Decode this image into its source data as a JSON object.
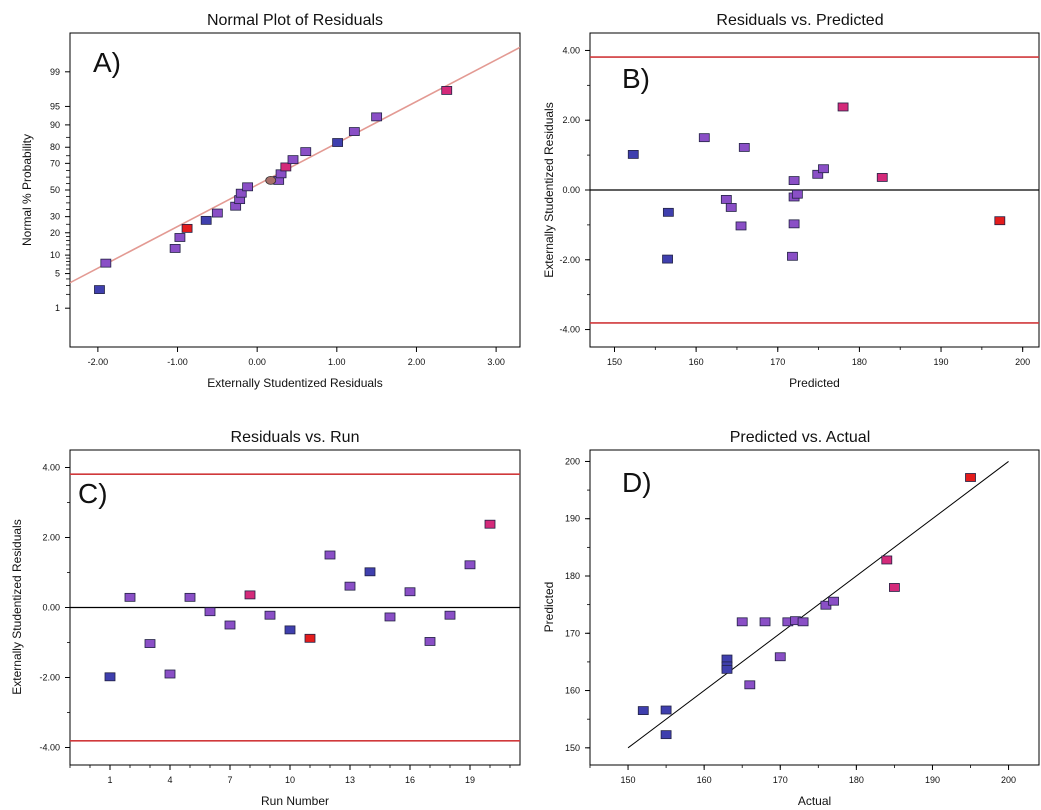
{
  "colors": {
    "reference_red": "#d0393b",
    "normal_line": "#e39a93",
    "zero_line": "#000000",
    "fit_line": "#000000",
    "point_low": "#3f3fae",
    "point_mid": "#8a4fc6",
    "point_high": "#d42a7a",
    "point_max": "#e41c1c",
    "point_stroke": "#222244"
  },
  "chart_data": [
    {
      "panel": "A)",
      "type": "scatter",
      "title": "Normal Plot of Residuals",
      "xlabel": "Externally Studentized Residuals",
      "ylabel": "Normal % Probability",
      "y_scale": "normal-probability",
      "xlim": [
        -2.35,
        3.3
      ],
      "ylim": [
        0.1,
        99.9
      ],
      "xticks": [
        "-2.00",
        "-1.00",
        "0.00",
        "1.00",
        "2.00",
        "3.00"
      ],
      "xtick_values": [
        -2,
        -1,
        0,
        1,
        2,
        3
      ],
      "yticks": [
        "1",
        "5",
        "10",
        "20",
        "30",
        "50",
        "70",
        "80",
        "90",
        "95",
        "99"
      ],
      "ytick_values": [
        1,
        5,
        10,
        20,
        30,
        50,
        70,
        80,
        90,
        95,
        99
      ],
      "reference_line": {
        "x": [
          -2.35,
          3.3
        ],
        "y": [
          3.4,
          99.75
        ]
      },
      "points": [
        {
          "x": -1.98,
          "y": 2.5,
          "c": "low"
        },
        {
          "x": -1.9,
          "y": 7.5,
          "c": "mid"
        },
        {
          "x": -1.03,
          "y": 12.5,
          "c": "mid"
        },
        {
          "x": -0.97,
          "y": 17.5,
          "c": "mid"
        },
        {
          "x": -0.88,
          "y": 22.5,
          "c": "max"
        },
        {
          "x": -0.64,
          "y": 27.5,
          "c": "low"
        },
        {
          "x": -0.5,
          "y": 32.5,
          "c": "mid"
        },
        {
          "x": -0.27,
          "y": 37.5,
          "c": "mid"
        },
        {
          "x": -0.22,
          "y": 42.5,
          "c": "mid"
        },
        {
          "x": -0.2,
          "y": 47.5,
          "c": "mid"
        },
        {
          "x": -0.12,
          "y": 52.5,
          "c": "mid"
        },
        {
          "x": 0.27,
          "y": 57.5,
          "c": "mid"
        },
        {
          "x": 0.3,
          "y": 62.5,
          "c": "mid"
        },
        {
          "x": 0.36,
          "y": 67.5,
          "c": "high"
        },
        {
          "x": 0.45,
          "y": 72.5,
          "c": "mid"
        },
        {
          "x": 0.61,
          "y": 77.5,
          "c": "mid"
        },
        {
          "x": 1.01,
          "y": 82.5,
          "c": "low"
        },
        {
          "x": 1.22,
          "y": 87.5,
          "c": "mid"
        },
        {
          "x": 1.5,
          "y": 92.5,
          "c": "mid"
        },
        {
          "x": 2.38,
          "y": 97.5,
          "c": "high"
        }
      ]
    },
    {
      "panel": "B)",
      "type": "scatter",
      "title": "Residuals vs. Predicted",
      "xlabel": "Predicted",
      "ylabel": "Externally Studentized Residuals",
      "xlim": [
        147,
        202
      ],
      "ylim": [
        -4.5,
        4.5
      ],
      "xticks": [
        "150",
        "160",
        "170",
        "180",
        "190",
        "200"
      ],
      "xtick_values": [
        150,
        160,
        170,
        180,
        190,
        200
      ],
      "yticks": [
        "-4.00",
        "-2.00",
        "0.00",
        "2.00",
        "4.00"
      ],
      "ytick_values": [
        -4,
        -2,
        0,
        2,
        4
      ],
      "reference_lines_y": [
        3.81,
        -3.81
      ],
      "zero_line_y": 0,
      "points": [
        {
          "x": 152.3,
          "y": 1.02,
          "c": "low"
        },
        {
          "x": 156.5,
          "y": -1.98,
          "c": "low"
        },
        {
          "x": 156.6,
          "y": -0.64,
          "c": "low"
        },
        {
          "x": 161.0,
          "y": 1.5,
          "c": "mid"
        },
        {
          "x": 163.7,
          "y": -0.27,
          "c": "mid"
        },
        {
          "x": 164.3,
          "y": -0.5,
          "c": "mid"
        },
        {
          "x": 165.5,
          "y": -1.03,
          "c": "mid"
        },
        {
          "x": 165.9,
          "y": 1.22,
          "c": "mid"
        },
        {
          "x": 171.8,
          "y": -1.9,
          "c": "mid"
        },
        {
          "x": 172.0,
          "y": -0.97,
          "c": "mid"
        },
        {
          "x": 172.0,
          "y": -0.2,
          "c": "mid"
        },
        {
          "x": 172.0,
          "y": 0.27,
          "c": "mid"
        },
        {
          "x": 172.4,
          "y": -0.12,
          "c": "mid"
        },
        {
          "x": 174.9,
          "y": 0.45,
          "c": "mid"
        },
        {
          "x": 175.6,
          "y": 0.61,
          "c": "mid"
        },
        {
          "x": 178.0,
          "y": 2.38,
          "c": "high"
        },
        {
          "x": 182.8,
          "y": 0.36,
          "c": "high"
        },
        {
          "x": 197.2,
          "y": -0.88,
          "c": "max"
        }
      ]
    },
    {
      "panel": "C)",
      "type": "scatter",
      "title": "Residuals vs. Run",
      "xlabel": "Run Number",
      "ylabel": "Externally Studentized Residuals",
      "xlim": [
        -1,
        21.5
      ],
      "ylim": [
        -4.5,
        4.5
      ],
      "xticks": [
        "1",
        "4",
        "7",
        "10",
        "13",
        "16",
        "19"
      ],
      "xtick_values": [
        1,
        4,
        7,
        10,
        13,
        16,
        19
      ],
      "yticks": [
        "-4.00",
        "-2.00",
        "0.00",
        "2.00",
        "4.00"
      ],
      "ytick_values": [
        -4,
        -2,
        0,
        2,
        4
      ],
      "reference_lines_y": [
        3.81,
        -3.81
      ],
      "zero_line_y": 0,
      "points": [
        {
          "x": 1,
          "y": -1.98,
          "c": "low"
        },
        {
          "x": 2,
          "y": 0.29,
          "c": "mid"
        },
        {
          "x": 3,
          "y": -1.03,
          "c": "mid"
        },
        {
          "x": 4,
          "y": -1.9,
          "c": "mid"
        },
        {
          "x": 5,
          "y": 0.29,
          "c": "mid"
        },
        {
          "x": 6,
          "y": -0.12,
          "c": "mid"
        },
        {
          "x": 7,
          "y": -0.5,
          "c": "mid"
        },
        {
          "x": 8,
          "y": 0.36,
          "c": "high"
        },
        {
          "x": 9,
          "y": -0.22,
          "c": "mid"
        },
        {
          "x": 10,
          "y": -0.64,
          "c": "low"
        },
        {
          "x": 11,
          "y": -0.88,
          "c": "max"
        },
        {
          "x": 12,
          "y": 1.5,
          "c": "mid"
        },
        {
          "x": 13,
          "y": 0.61,
          "c": "mid"
        },
        {
          "x": 14,
          "y": 1.02,
          "c": "low"
        },
        {
          "x": 15,
          "y": -0.27,
          "c": "mid"
        },
        {
          "x": 16,
          "y": 0.45,
          "c": "mid"
        },
        {
          "x": 17,
          "y": -0.97,
          "c": "mid"
        },
        {
          "x": 18,
          "y": -0.22,
          "c": "mid"
        },
        {
          "x": 19,
          "y": 1.22,
          "c": "mid"
        },
        {
          "x": 20,
          "y": 2.38,
          "c": "high"
        }
      ]
    },
    {
      "panel": "D)",
      "type": "scatter",
      "title": "Predicted vs. Actual",
      "xlabel": "Actual",
      "ylabel": "Predicted",
      "xlim": [
        145,
        204
      ],
      "ylim": [
        147,
        202
      ],
      "xticks": [
        "150",
        "160",
        "170",
        "180",
        "190",
        "200"
      ],
      "xtick_values": [
        150,
        160,
        170,
        180,
        190,
        200
      ],
      "yticks": [
        "150",
        "160",
        "170",
        "180",
        "190",
        "200"
      ],
      "ytick_values": [
        150,
        160,
        170,
        180,
        190,
        200
      ],
      "fit_line": {
        "x": [
          150,
          200
        ],
        "y": [
          150,
          200
        ]
      },
      "points": [
        {
          "x": 152.0,
          "y": 156.5,
          "c": "low"
        },
        {
          "x": 155.0,
          "y": 156.6,
          "c": "low"
        },
        {
          "x": 155.0,
          "y": 152.3,
          "c": "low"
        },
        {
          "x": 163.0,
          "y": 165.5,
          "c": "low"
        },
        {
          "x": 163.0,
          "y": 164.3,
          "c": "low"
        },
        {
          "x": 163.0,
          "y": 163.7,
          "c": "low"
        },
        {
          "x": 165.0,
          "y": 172.0,
          "c": "mid"
        },
        {
          "x": 166.0,
          "y": 161.0,
          "c": "mid"
        },
        {
          "x": 168.0,
          "y": 172.0,
          "c": "mid"
        },
        {
          "x": 170.0,
          "y": 165.9,
          "c": "mid"
        },
        {
          "x": 171.0,
          "y": 172.0,
          "c": "mid"
        },
        {
          "x": 172.0,
          "y": 172.2,
          "c": "mid"
        },
        {
          "x": 173.0,
          "y": 172.0,
          "c": "mid"
        },
        {
          "x": 176.0,
          "y": 174.9,
          "c": "mid"
        },
        {
          "x": 177.0,
          "y": 175.6,
          "c": "mid"
        },
        {
          "x": 184.0,
          "y": 182.8,
          "c": "high"
        },
        {
          "x": 185.0,
          "y": 178.0,
          "c": "high"
        },
        {
          "x": 195.0,
          "y": 197.2,
          "c": "max"
        }
      ]
    }
  ]
}
